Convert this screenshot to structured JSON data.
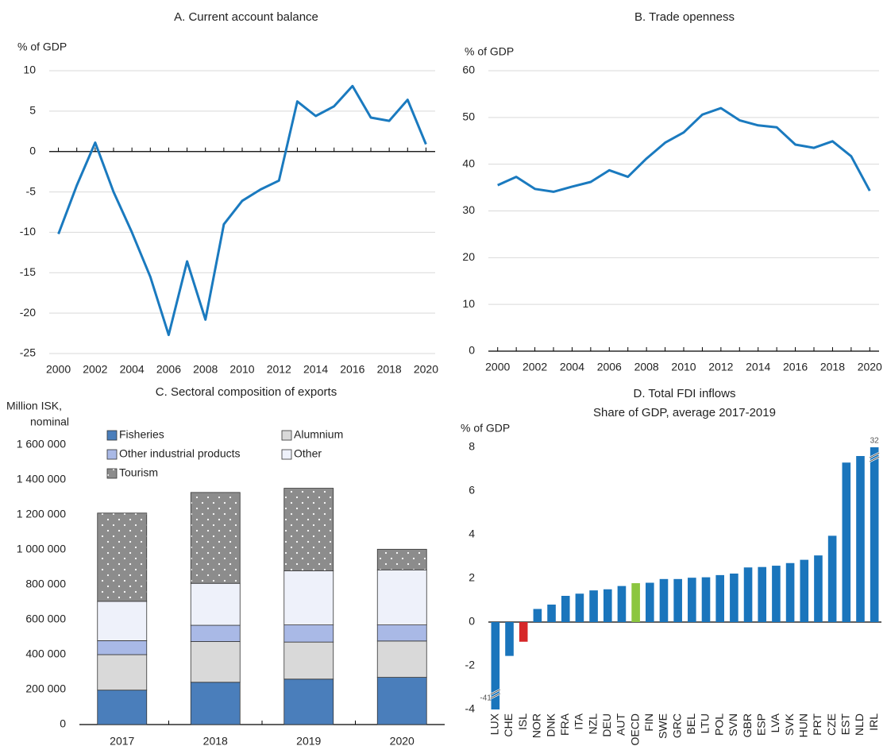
{
  "chart_data": [
    {
      "type": "line",
      "title": "A. Current account balance",
      "y_label": "% of GDP",
      "x": [
        2000,
        2001,
        2002,
        2003,
        2004,
        2005,
        2006,
        2007,
        2008,
        2009,
        2010,
        2011,
        2012,
        2013,
        2014,
        2015,
        2016,
        2017,
        2018,
        2019,
        2020
      ],
      "values": [
        -10.2,
        -4.2,
        1.1,
        -5,
        -10,
        -15.5,
        -22.7,
        -13.6,
        -20.8,
        -9,
        -6.1,
        -4.7,
        -3.6,
        6.2,
        4.4,
        5.6,
        8.1,
        4.2,
        3.8,
        6.4,
        0.9
      ],
      "color": "#1a7abf",
      "xlim": [
        1999.5,
        2020.5
      ],
      "xticks": [
        2000,
        2002,
        2004,
        2006,
        2008,
        2010,
        2012,
        2014,
        2016,
        2018,
        2020
      ],
      "ylim": [
        -25,
        10
      ],
      "yticks": [
        -25,
        -20,
        -15,
        -10,
        -5,
        0,
        5,
        10
      ],
      "grid": true
    },
    {
      "type": "line",
      "title": "B. Trade openness",
      "y_label": "% of GDP",
      "x": [
        2000,
        2001,
        2002,
        2003,
        2004,
        2005,
        2006,
        2007,
        2008,
        2009,
        2010,
        2011,
        2012,
        2013,
        2014,
        2015,
        2016,
        2017,
        2018,
        2019,
        2020
      ],
      "values": [
        35.5,
        37.3,
        34.7,
        34.1,
        35.2,
        36.2,
        38.7,
        37.3,
        41.2,
        44.6,
        46.8,
        50.6,
        52,
        49.4,
        48.3,
        47.9,
        44.2,
        43.5,
        44.9,
        41.7,
        34.3
      ],
      "color": "#1a7abf",
      "xlim": [
        1999.5,
        2020.5
      ],
      "xticks": [
        2000,
        2002,
        2004,
        2006,
        2008,
        2010,
        2012,
        2014,
        2016,
        2018,
        2020
      ],
      "ylim": [
        0,
        60
      ],
      "yticks": [
        0,
        10,
        20,
        30,
        40,
        50,
        60
      ],
      "grid": true
    },
    {
      "type": "stacked_bar",
      "title": "C. Sectoral composition of exports",
      "y_label": [
        "Million ISK,",
        "nominal"
      ],
      "categories": [
        "2017",
        "2018",
        "2019",
        "2020"
      ],
      "series": [
        {
          "name": "Fisheries",
          "color": "#4a7ebb",
          "values": [
            197000,
            242000,
            260000,
            270000
          ]
        },
        {
          "name": "Alumnium",
          "color": "#d9d9d9",
          "values": [
            203000,
            233000,
            212000,
            208000
          ]
        },
        {
          "name": "Other industrial products",
          "color": "#a9b9e6",
          "values": [
            80000,
            93000,
            98000,
            92000
          ]
        },
        {
          "name": "Other",
          "color": "#eef1fa",
          "values": [
            225000,
            240000,
            310000,
            315000
          ]
        },
        {
          "name": "Tourism",
          "color": "#8c8c8c",
          "pattern": "dots",
          "values": [
            505000,
            520000,
            472000,
            118000
          ]
        }
      ],
      "ylim": [
        0,
        1600000
      ],
      "yticks": [
        0,
        {
          "value": 200000,
          "label": "200 000"
        },
        {
          "value": 400000,
          "label": "400 000"
        },
        {
          "value": 600000,
          "label": "600 000"
        },
        {
          "value": 800000,
          "label": "800 000"
        },
        {
          "value": 1000000,
          "label": "1 000 000"
        },
        {
          "value": 1200000,
          "label": "1 200 000"
        },
        {
          "value": 1400000,
          "label": "1 400 000"
        },
        {
          "value": 1600000,
          "label": "1 600 000"
        }
      ],
      "grid": false
    },
    {
      "type": "bar",
      "title": "D. Total FDI inflows",
      "subtitle": "Share of GDP, average 2017-2019",
      "y_label": "% of GDP",
      "categories": [
        "LUX",
        "CHE",
        "ISL",
        "NOR",
        "DNK",
        "FRA",
        "ITA",
        "NZL",
        "DEU",
        "AUT",
        "OECD",
        "FIN",
        "SWE",
        "GRC",
        "BEL",
        "LTU",
        "POL",
        "SVN",
        "GBR",
        "ESP",
        "LVA",
        "SVK",
        "HUN",
        "PRT",
        "CZE",
        "EST",
        "NLD",
        "IRL"
      ],
      "values": [
        -41,
        -1.55,
        -0.9,
        0.6,
        0.8,
        1.2,
        1.3,
        1.45,
        1.5,
        1.65,
        1.78,
        1.8,
        1.97,
        1.97,
        2.03,
        2.05,
        2.15,
        2.22,
        2.5,
        2.52,
        2.58,
        2.7,
        2.85,
        3.05,
        3.95,
        7.3,
        7.6,
        32
      ],
      "value_labels": [
        "-41",
        null,
        null,
        null,
        null,
        null,
        null,
        null,
        null,
        null,
        null,
        null,
        null,
        null,
        null,
        null,
        null,
        null,
        null,
        null,
        null,
        null,
        null,
        null,
        null,
        null,
        null,
        "32"
      ],
      "colors": [
        "#1a75bc",
        "#1a75bc",
        "#d62728",
        "#1a75bc",
        "#1a75bc",
        "#1a75bc",
        "#1a75bc",
        "#1a75bc",
        "#1a75bc",
        "#1a75bc",
        "#8cc63f",
        "#1a75bc",
        "#1a75bc",
        "#1a75bc",
        "#1a75bc",
        "#1a75bc",
        "#1a75bc",
        "#1a75bc",
        "#1a75bc",
        "#1a75bc",
        "#1a75bc",
        "#1a75bc",
        "#1a75bc",
        "#1a75bc",
        "#1a75bc",
        "#1a75bc",
        "#1a75bc",
        "#1a75bc"
      ],
      "ylim": [
        -4,
        8
      ],
      "yticks": [
        -4,
        -2,
        0,
        2,
        4,
        6,
        8
      ],
      "grid": false
    }
  ]
}
